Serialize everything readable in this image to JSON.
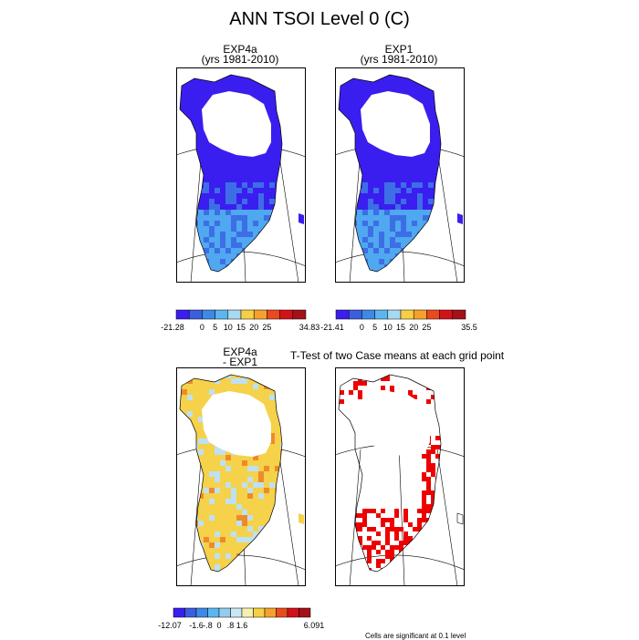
{
  "title": "ANN TSOI Level 0 (C)",
  "panels": {
    "exp4a": {
      "line1": "EXP4a",
      "line2": "(yrs 1981-2010)"
    },
    "exp1": {
      "line1": "EXP1",
      "line2": "(yrs 1981-2010)"
    },
    "diff": {
      "line1": "EXP4a",
      "line2": "- EXP1"
    },
    "ttest": {
      "title": "T-Test of two Case means at each grid point"
    }
  },
  "colorbars": {
    "exp4a": {
      "labels": [
        "-21.28",
        "0",
        "5",
        "10",
        "15",
        "20",
        "25",
        "34.83"
      ],
      "colors": [
        "#3a1ef0",
        "#3b5ee0",
        "#3d8ae6",
        "#5bb6f0",
        "#a9d9f2",
        "#f7cf44",
        "#f5a12b",
        "#ea4a1e",
        "#d2121a",
        "#a31218"
      ]
    },
    "exp1": {
      "labels": [
        "-21.41",
        "0",
        "5",
        "10",
        "15",
        "20",
        "25",
        "35.5"
      ],
      "colors": [
        "#3a1ef0",
        "#3b5ee0",
        "#3d8ae6",
        "#5bb6f0",
        "#a9d9f2",
        "#f7cf44",
        "#f5a12b",
        "#ea4a1e",
        "#d2121a",
        "#a31218"
      ]
    },
    "diff": {
      "labels": [
        "-12.07",
        "-1.6",
        "-.8",
        "0",
        ".8",
        "1.6",
        "6.091"
      ],
      "colors": [
        "#3a1ef0",
        "#3b5ee0",
        "#3d8ae6",
        "#5bb6f0",
        "#93cdee",
        "#c9e6f5",
        "#f5efb0",
        "#f7cf44",
        "#f5a12b",
        "#ea4a1e",
        "#d2121a",
        "#a31218"
      ]
    }
  },
  "footnote": "Cells are significant at 0.1 level",
  "map_colors": {
    "land_cold": "#3a1ef0",
    "land_mid": "#3d6ee6",
    "land_warm": "#4fa8f0",
    "diff_warm": "#f5d24a",
    "diff_cool": "#bfe0f2",
    "diff_hot": "#ef8a2a",
    "sig": "#ee0000"
  }
}
